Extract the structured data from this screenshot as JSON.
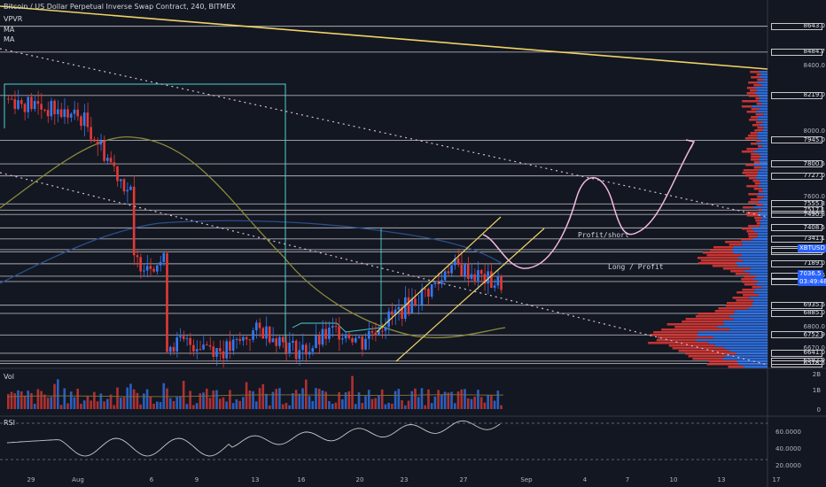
{
  "header": {
    "symbol": "Bitcoin / US Dollar Perpetual Inverse Swap Contract, 240, BITMEX",
    "indicators": [
      "VPVR",
      "MA",
      "MA"
    ]
  },
  "panes": {
    "volume_label": "Vol",
    "rsi_label": "RSI"
  },
  "annotations": {
    "profit_short": "Profit/short",
    "long_profit": "Long / Profit"
  },
  "price_axis": {
    "labels": [
      {
        "text": "8643.0",
        "boxed": true
      },
      {
        "text": "8484.7",
        "boxed": true
      },
      {
        "text": "8400.0",
        "boxed": false
      },
      {
        "text": "8219.0",
        "boxed": true
      },
      {
        "text": "8000.0",
        "boxed": false
      },
      {
        "text": "7945.0",
        "boxed": true
      },
      {
        "text": "7800.5",
        "boxed": true
      },
      {
        "text": "7727.0",
        "boxed": true
      },
      {
        "text": "7600.0",
        "boxed": false
      },
      {
        "text": "7555.3",
        "boxed": true
      },
      {
        "text": "7517.1",
        "boxed": true
      },
      {
        "text": "7490.8",
        "boxed": true
      },
      {
        "text": "7408.5",
        "boxed": true
      },
      {
        "text": "7341.1",
        "boxed": true
      },
      {
        "text": "7275.2",
        "boxed": true
      },
      {
        "text": "7262.1",
        "boxed": true
      },
      {
        "text": "7189.0",
        "boxed": true
      },
      {
        "text": "7112.6",
        "boxed": true
      },
      {
        "text": "7080.5",
        "boxed": true
      },
      {
        "text": "6935.6",
        "boxed": true
      },
      {
        "text": "6885.0",
        "boxed": true
      },
      {
        "text": "6800.0",
        "boxed": false
      },
      {
        "text": "6752.9",
        "boxed": true
      },
      {
        "text": "6670.0",
        "boxed": false
      },
      {
        "text": "6641.0",
        "boxed": true
      },
      {
        "text": "6592.9",
        "boxed": true
      },
      {
        "text": "6578.5",
        "boxed": true
      }
    ],
    "ticker_badge": "XBTUSD",
    "last_price": "7036.5",
    "countdown": "03:49:48"
  },
  "volume_axis": [
    "2B",
    "1B",
    "0"
  ],
  "rsi_axis": [
    "60.0000",
    "40.0000",
    "20.0000"
  ],
  "time_axis": [
    "29",
    "Aug",
    "6",
    "9",
    "13",
    "16",
    "20",
    "23",
    "27",
    "Sep",
    "4",
    "7",
    "10",
    "13",
    "17"
  ],
  "colors": {
    "background": "#131722",
    "up": "#3179f5",
    "down": "#e53935",
    "trendline": "#f0d264",
    "hline": "#c8c8c8",
    "dotted": "#d7bcd6",
    "projection": "#f2b8e2",
    "cyan_box": "#4dd0d0",
    "ma_olive": "#8a8a3a",
    "ma_blue": "#2a4f8a"
  }
}
